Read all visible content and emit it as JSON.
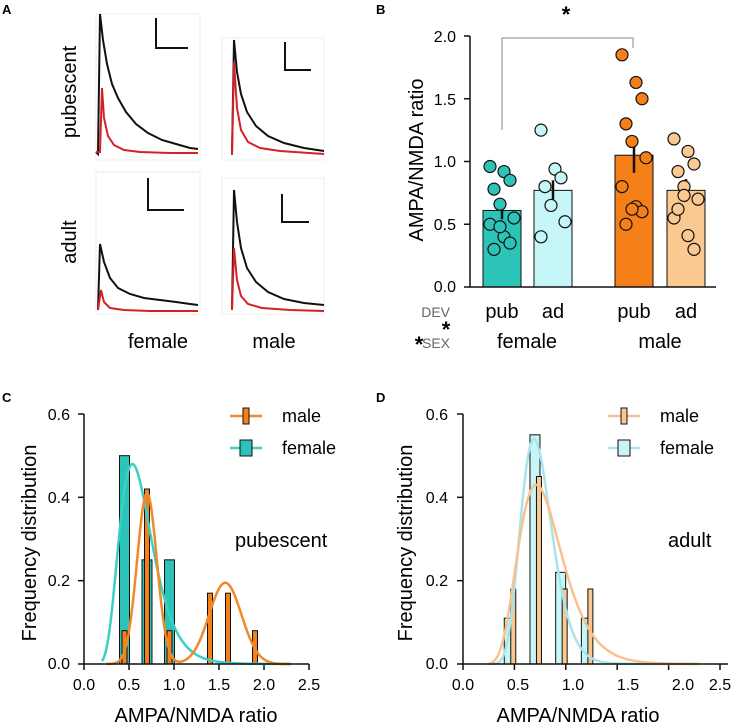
{
  "panel_letters": [
    "A",
    "B",
    "C",
    "D"
  ],
  "colors": {
    "female_pub": "#2cc4b8",
    "female_ad": "#c6f6f7",
    "male_pub": "#f57f18",
    "male_ad": "#fbc88f",
    "trace_black": "#111111",
    "trace_red": "#d62027",
    "female_curve": "#3ccfc4",
    "male_curve": "#ef8a2c",
    "female_curve_adult": "#a8e4ea",
    "male_curve_adult": "#f9c28d"
  },
  "panel_a": {
    "row_labels": [
      "pubescent",
      "adult"
    ],
    "column_labels": [
      "female",
      "male"
    ]
  },
  "chart_data": [
    {
      "panel": "B",
      "type": "bar",
      "title": "",
      "xlabel": "",
      "ylabel": "AMPA/NMDA ratio",
      "ylim": [
        0.0,
        2.0
      ],
      "yticks": [
        "0.0",
        "0.5",
        "1.0",
        "1.5",
        "2.0"
      ],
      "categories": [
        "pub",
        "ad",
        "pub",
        "ad"
      ],
      "group_labels": [
        "female",
        "male"
      ],
      "factor_labels": [
        "DEV",
        "SEX"
      ],
      "factor_stars": [
        "*",
        "*"
      ],
      "significance": {
        "label": "*",
        "between": [
          "female pub",
          "male pub"
        ]
      },
      "values": [
        0.61,
        0.77,
        1.05,
        0.77
      ],
      "sem": [
        0.07,
        0.08,
        0.14,
        0.09
      ],
      "points": [
        [
          0.96,
          0.92,
          0.85,
          0.78,
          0.66,
          0.55,
          0.5,
          0.4,
          0.35,
          0.3,
          0.48
        ],
        [
          1.25,
          0.94,
          0.87,
          0.8,
          0.65,
          0.52,
          0.4
        ],
        [
          1.85,
          1.63,
          1.5,
          1.3,
          1.16,
          1.03,
          0.8,
          0.64,
          0.6,
          0.5,
          0.62
        ],
        [
          1.18,
          1.08,
          0.98,
          0.92,
          0.8,
          0.7,
          0.55,
          0.41,
          0.3,
          0.62,
          0.73
        ]
      ]
    },
    {
      "panel": "C",
      "type": "bar",
      "annotation": "pubescent",
      "xlabel": "AMPA/NMDA ratio",
      "ylabel": "Frequency distribution",
      "xlim": [
        0.0,
        2.5
      ],
      "ylim": [
        0.0,
        0.6
      ],
      "xticks": [
        "0.0",
        "0.5",
        "1.0",
        "1.5",
        "2.0",
        "2.5"
      ],
      "yticks": [
        "0.0",
        "0.2",
        "0.4",
        "0.6"
      ],
      "legend": [
        "male",
        "female"
      ],
      "series": [
        {
          "name": "female",
          "bins": [
            0.45,
            0.7,
            0.95
          ],
          "values": [
            0.5,
            0.25,
            0.25
          ],
          "curve": {
            "kind": "lognormal",
            "mu": -0.62,
            "sigma": 0.34,
            "scale": 0.48
          }
        },
        {
          "name": "male",
          "bins": [
            0.45,
            0.7,
            0.95,
            1.4,
            1.6,
            1.9
          ],
          "values": [
            0.08,
            0.42,
            0.08,
            0.17,
            0.17,
            0.08
          ],
          "curve": {
            "kind": "two-gaussian",
            "peaks": [
              [
                0.7,
                0.11,
                0.41
              ],
              [
                1.57,
                0.18,
                0.195
              ]
            ]
          }
        }
      ]
    },
    {
      "panel": "D",
      "type": "bar",
      "annotation": "adult",
      "xlabel": "AMPA/NMDA ratio",
      "ylabel": "Frequency distribution",
      "xlim": [
        0.0,
        2.5
      ],
      "ylim": [
        0.0,
        0.6
      ],
      "xticks": [
        "0.0",
        "0.5",
        "1.0",
        "1.5",
        "2.0",
        "2.5"
      ],
      "yticks": [
        "0.0",
        "0.2",
        "0.4",
        "0.6"
      ],
      "legend": [
        "male",
        "female"
      ],
      "series": [
        {
          "name": "female",
          "bins": [
            0.45,
            0.7,
            0.95,
            1.2
          ],
          "values": [
            0.11,
            0.55,
            0.22,
            0.11
          ],
          "curve": {
            "kind": "lognormal",
            "mu": -0.37,
            "sigma": 0.22,
            "scale": 0.54
          }
        },
        {
          "name": "male",
          "bins": [
            0.45,
            0.7,
            0.95,
            1.2
          ],
          "values": [
            0.18,
            0.45,
            0.18,
            0.18
          ],
          "curve": {
            "kind": "lognormal",
            "mu": -0.34,
            "sigma": 0.3,
            "scale": 0.43
          }
        }
      ]
    }
  ]
}
